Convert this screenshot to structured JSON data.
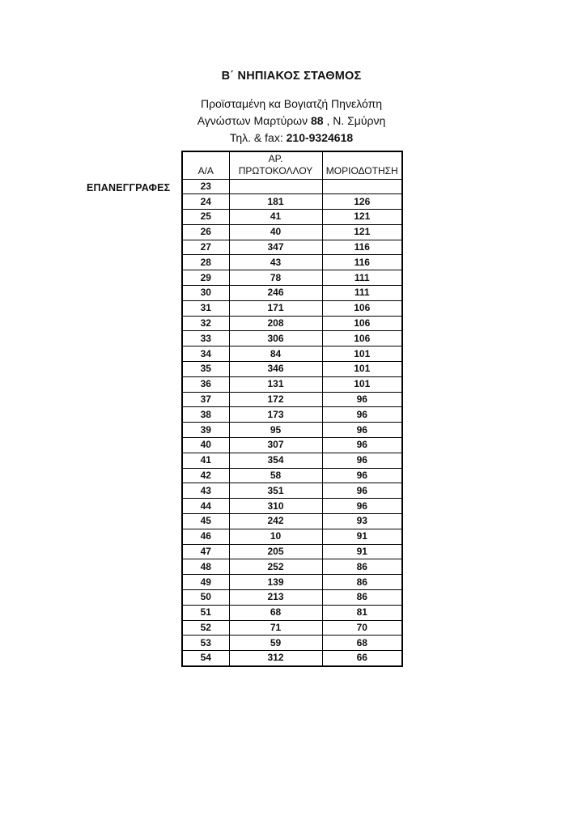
{
  "header": {
    "title": "Β΄ ΝΗΠΙΑΚΟΣ ΣΤΑΘΜΟΣ",
    "manager_line": "Προϊσταμένη κα Βογιατζή Πηνελόπη",
    "address_prefix": "Αγνώστων Μαρτύρων ",
    "address_number": "88",
    "address_suffix": " , Ν. Σμύρνη",
    "phone_prefix": "Τηλ. & fax: ",
    "phone_number": "210-9324618"
  },
  "section_label": "ΕΠΑΝΕΓΓΡΑΦΕΣ",
  "table": {
    "columns": [
      "Α/Α",
      "ΑΡ.\nΠΡΩΤΟΚΟΛΛΟΥ",
      "ΜΟΡΙΟΔΟΤΗΣΗ"
    ],
    "rows": [
      [
        "23",
        "",
        ""
      ],
      [
        "24",
        "181",
        "126"
      ],
      [
        "25",
        "41",
        "121"
      ],
      [
        "26",
        "40",
        "121"
      ],
      [
        "27",
        "347",
        "116"
      ],
      [
        "28",
        "43",
        "116"
      ],
      [
        "29",
        "78",
        "111"
      ],
      [
        "30",
        "246",
        "111"
      ],
      [
        "31",
        "171",
        "106"
      ],
      [
        "32",
        "208",
        "106"
      ],
      [
        "33",
        "306",
        "106"
      ],
      [
        "34",
        "84",
        "101"
      ],
      [
        "35",
        "346",
        "101"
      ],
      [
        "36",
        "131",
        "101"
      ],
      [
        "37",
        "172",
        "96"
      ],
      [
        "38",
        "173",
        "96"
      ],
      [
        "39",
        "95",
        "96"
      ],
      [
        "40",
        "307",
        "96"
      ],
      [
        "41",
        "354",
        "96"
      ],
      [
        "42",
        "58",
        "96"
      ],
      [
        "43",
        "351",
        "96"
      ],
      [
        "44",
        "310",
        "96"
      ],
      [
        "45",
        "242",
        "93"
      ],
      [
        "46",
        "10",
        "91"
      ],
      [
        "47",
        "205",
        "91"
      ],
      [
        "48",
        "252",
        "86"
      ],
      [
        "49",
        "139",
        "86"
      ],
      [
        "50",
        "213",
        "86"
      ],
      [
        "51",
        "68",
        "81"
      ],
      [
        "52",
        "71",
        "70"
      ],
      [
        "53",
        "59",
        "68"
      ],
      [
        "54",
        "312",
        "66"
      ]
    ]
  },
  "colors": {
    "text": "#111111",
    "border": "#000000",
    "background": "#ffffff"
  }
}
